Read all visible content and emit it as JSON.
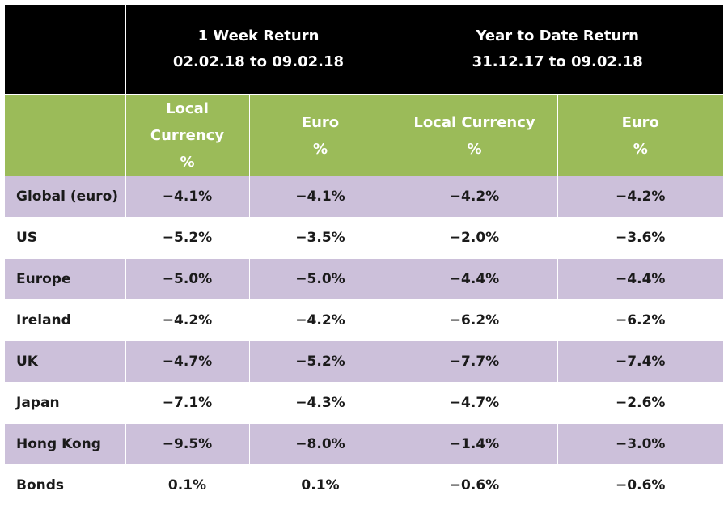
{
  "header": {
    "week_title": "1 Week Return",
    "week_dates": "02.02.18 to 09.02.18",
    "ytd_title": "Year to Date Return",
    "ytd_dates": "31.12.17 to 09.02.18"
  },
  "subheader": {
    "week_local_line1": "Local",
    "week_local_line2": "Currency",
    "week_local_line3": "%",
    "week_euro_line1": "Euro",
    "week_euro_line2": "%",
    "ytd_local_line1": "Local Currency",
    "ytd_local_line2": "%",
    "ytd_euro_line1": "Euro",
    "ytd_euro_line2": "%"
  },
  "colors": {
    "header_bg": "#000000",
    "subheader_bg": "#9bbb59",
    "shade_bg": "#ccc0da"
  },
  "rows": [
    {
      "market": "Global (euro)",
      "week_local": "−4.1%",
      "week_euro": "−4.1%",
      "ytd_local": "−4.2%",
      "ytd_euro": "−4.2%"
    },
    {
      "market": "US",
      "week_local": "−5.2%",
      "week_euro": "−3.5%",
      "ytd_local": "−2.0%",
      "ytd_euro": "−3.6%"
    },
    {
      "market": "Europe",
      "week_local": "−5.0%",
      "week_euro": "−5.0%",
      "ytd_local": "−4.4%",
      "ytd_euro": "−4.4%"
    },
    {
      "market": "Ireland",
      "week_local": "−4.2%",
      "week_euro": "−4.2%",
      "ytd_local": "−6.2%",
      "ytd_euro": "−6.2%"
    },
    {
      "market": "UK",
      "week_local": "−4.7%",
      "week_euro": "−5.2%",
      "ytd_local": "−7.7%",
      "ytd_euro": "−7.4%"
    },
    {
      "market": "Japan",
      "week_local": "−7.1%",
      "week_euro": "−4.3%",
      "ytd_local": "−4.7%",
      "ytd_euro": "−2.6%"
    },
    {
      "market": "Hong Kong",
      "week_local": "−9.5%",
      "week_euro": "−8.0%",
      "ytd_local": "−1.4%",
      "ytd_euro": "−3.0%"
    },
    {
      "market": "Bonds",
      "week_local": "0.1%",
      "week_euro": "0.1%",
      "ytd_local": "−0.6%",
      "ytd_euro": "−0.6%"
    }
  ]
}
